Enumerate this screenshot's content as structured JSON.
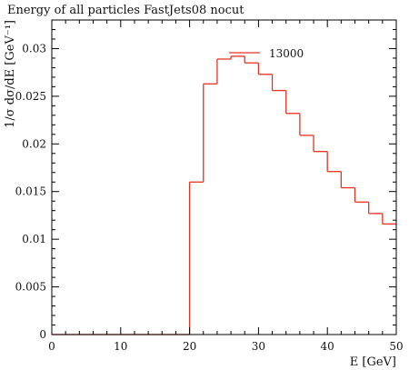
{
  "chart_data": {
    "type": "line",
    "title": "Energy of all particles FastJets08 nocut",
    "xlabel": "E [GeV]",
    "ylabel": "1/σ dσ/dE [GeV⁻¹]",
    "xlim": [
      0,
      50
    ],
    "ylim": [
      0,
      0.033
    ],
    "x_ticks": [
      0,
      10,
      20,
      30,
      40,
      50
    ],
    "x_tick_labels": [
      "0",
      "10",
      "20",
      "30",
      "40",
      "50"
    ],
    "y_ticks": [
      0,
      0.005,
      0.01,
      0.015,
      0.02,
      0.025,
      0.03
    ],
    "y_tick_labels": [
      "0",
      "0.005",
      "0.01",
      "0.015",
      "0.02",
      "0.025",
      "0.03"
    ],
    "legend_placement": "top-right",
    "colors": {
      "series": "#e8321e",
      "axis": "#000000"
    },
    "series": [
      {
        "name": "13000",
        "bin_edges": [
          0,
          2,
          4,
          6,
          8,
          10,
          12,
          14,
          16,
          18,
          20,
          22,
          24,
          26,
          28,
          30,
          32,
          34,
          36,
          38,
          40,
          42,
          44,
          46,
          48,
          50
        ],
        "values": [
          0,
          0,
          0,
          0,
          0,
          0,
          0,
          0,
          0,
          0,
          0.016,
          0.0263,
          0.0289,
          0.0292,
          0.0285,
          0.0273,
          0.0256,
          0.0232,
          0.0209,
          0.0192,
          0.0171,
          0.0154,
          0.0139,
          0.0127,
          0.0116
        ]
      }
    ]
  }
}
